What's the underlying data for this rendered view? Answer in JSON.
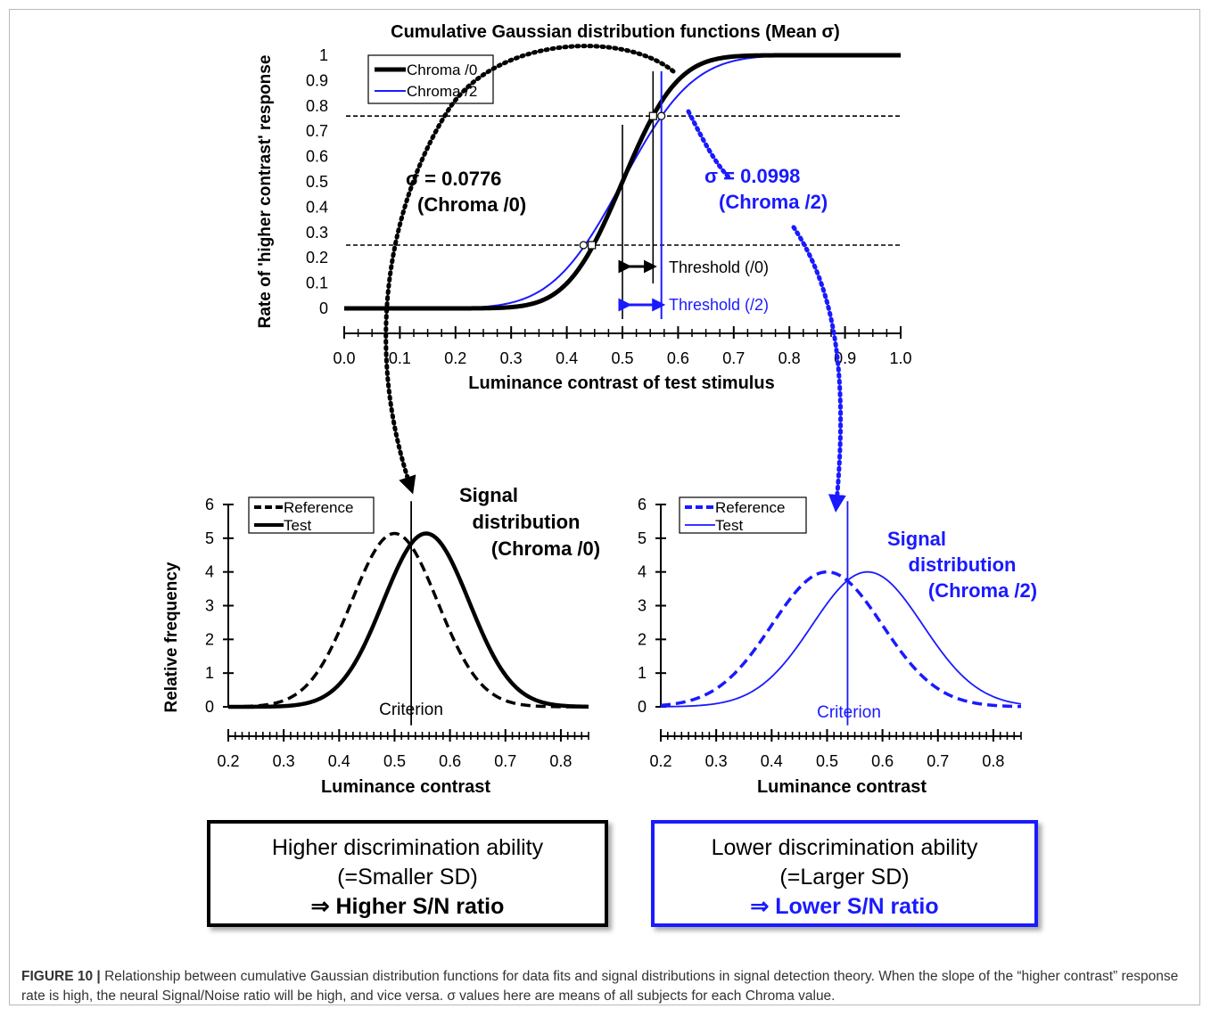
{
  "chart_data": [
    {
      "type": "line",
      "title": "Cumulative Gaussian distribution functions (Mean σ)",
      "xlabel": "Luminance contrast of test stimulus",
      "ylabel": "Rate of 'higher contrast' response",
      "xlim": [
        0.0,
        1.0
      ],
      "ylim": [
        0,
        1
      ],
      "xticks": [
        "0.0",
        "0.1",
        "0.2",
        "0.3",
        "0.4",
        "0.5",
        "0.6",
        "0.7",
        "0.8",
        "0.9",
        "1.0"
      ],
      "yticks": [
        "0",
        "0.1",
        "0.2",
        "0.3",
        "0.4",
        "0.5",
        "0.6",
        "0.7",
        "0.8",
        "0.9",
        "1"
      ],
      "legend_position": "top-left",
      "series": [
        {
          "name": "Chroma /0",
          "mean": 0.5,
          "sigma": 0.0776,
          "color": "#000000"
        },
        {
          "name": "Chroma /2",
          "mean": 0.5,
          "sigma": 0.0998,
          "color": "#1a1aff"
        }
      ],
      "reference_lines_y": [
        0.25,
        0.76
      ],
      "threshold_x": {
        "center": 0.5,
        "chroma0": 0.555,
        "chroma2": 0.57
      },
      "annotations": {
        "sigma0_value": "σ = 0.0776",
        "sigma0_label": "(Chroma /0)",
        "sigma2_value": "σ = 0.0998",
        "sigma2_label": "(Chroma /2)",
        "threshold0": "Threshold (/0)",
        "threshold2": "Threshold (/2)"
      }
    },
    {
      "type": "line",
      "title": "Signal distribution (Chroma /0)",
      "title_lines": [
        "Signal",
        "distribution",
        "(Chroma /0)"
      ],
      "xlabel": "Luminance contrast",
      "ylabel": "Relative frequency",
      "xlim": [
        0.2,
        0.85
      ],
      "ylim": [
        0,
        6
      ],
      "xticks": [
        "0.2",
        "0.3",
        "0.4",
        "0.5",
        "0.6",
        "0.7",
        "0.8"
      ],
      "yticks": [
        "0",
        "1",
        "2",
        "3",
        "4",
        "5",
        "6"
      ],
      "legend_position": "top-left",
      "series": [
        {
          "name": "Reference",
          "mean": 0.5,
          "sigma": 0.0776,
          "peak": 5.14,
          "style": "dashed",
          "color": "#000000"
        },
        {
          "name": "Test",
          "mean": 0.557,
          "sigma": 0.0776,
          "peak": 5.14,
          "style": "solid",
          "color": "#000000"
        }
      ],
      "criterion_x": 0.53,
      "criterion_label": "Criterion"
    },
    {
      "type": "line",
      "title": "Signal distribution (Chroma /2)",
      "title_lines": [
        "Signal",
        "distribution",
        "(Chroma /2)"
      ],
      "xlabel": "Luminance contrast",
      "ylabel": "",
      "xlim": [
        0.2,
        0.85
      ],
      "ylim": [
        0,
        6
      ],
      "xticks": [
        "0.2",
        "0.3",
        "0.4",
        "0.5",
        "0.6",
        "0.7",
        "0.8"
      ],
      "yticks": [
        "0",
        "1",
        "2",
        "3",
        "4",
        "5",
        "6"
      ],
      "legend_position": "top-left",
      "series": [
        {
          "name": "Reference",
          "mean": 0.5,
          "sigma": 0.0998,
          "peak": 4.0,
          "style": "dashed",
          "color": "#1a1aff"
        },
        {
          "name": "Test",
          "mean": 0.573,
          "sigma": 0.0998,
          "peak": 4.0,
          "style": "solid",
          "color": "#1a1aff"
        }
      ],
      "criterion_x": 0.537,
      "criterion_label": "Criterion"
    }
  ],
  "boxes": {
    "left": {
      "line1": "Higher discrimination ability",
      "line2": "(=Smaller SD)",
      "line3": "⇒ Higher S/N ratio"
    },
    "right": {
      "line1": "Lower discrimination ability",
      "line2": "(=Larger SD)",
      "line3": "⇒ Lower S/N ratio"
    }
  },
  "caption": {
    "label": "FIGURE 10 |",
    "text": "Relationship between cumulative Gaussian distribution functions for data fits and signal distributions in signal detection theory. When the slope of the “higher contrast” response rate is high, the neural Signal/Noise ratio will be high, and vice versa. σ values here are means of all subjects for each Chroma value."
  },
  "colors": {
    "chroma0": "#000000",
    "chroma2": "#1a1aff",
    "frame": "#b9b9b9"
  }
}
